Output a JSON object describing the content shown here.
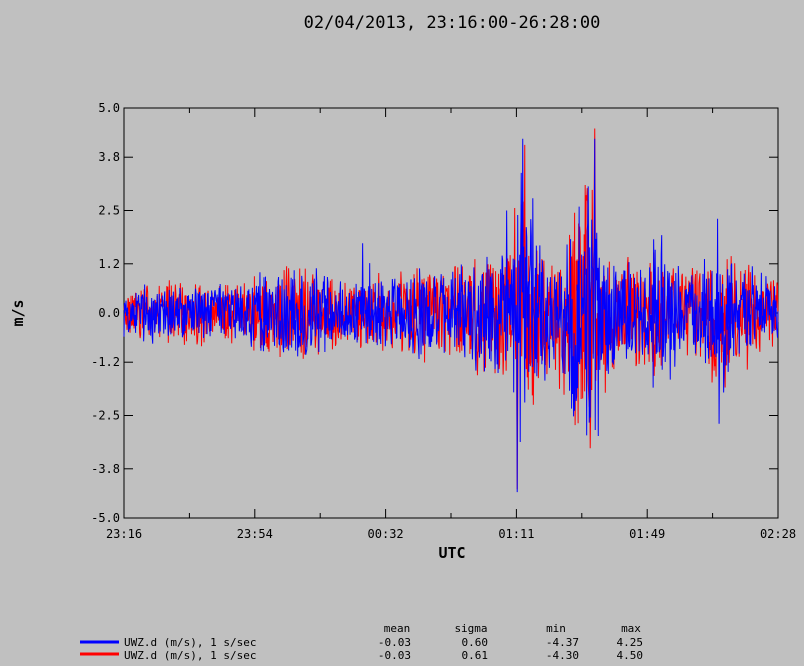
{
  "chart_data": {
    "type": "line",
    "title": "02/04/2013, 23:16:00-26:28:00",
    "xlabel": "UTC",
    "ylabel": "m/s",
    "ylim": [
      -5.0,
      5.0
    ],
    "yticks": [
      {
        "value": -5.0,
        "label": "-5.0"
      },
      {
        "value": -3.8,
        "label": "-3.8"
      },
      {
        "value": -2.5,
        "label": "-2.5"
      },
      {
        "value": -1.2,
        "label": "-1.2"
      },
      {
        "value": 0.0,
        "label": "0.0"
      },
      {
        "value": 1.2,
        "label": "1.2"
      },
      {
        "value": 2.5,
        "label": "2.5"
      },
      {
        "value": 3.8,
        "label": "3.8"
      },
      {
        "value": 5.0,
        "label": "5.0"
      }
    ],
    "xticks": [
      "23:16",
      "23:54",
      "00:32",
      "01:11",
      "01:49",
      "02:28"
    ],
    "grid": false,
    "stats_headers": [
      "mean",
      "sigma",
      "min",
      "max"
    ],
    "series": [
      {
        "name": "UWZ.d (m/s), 1 s/sec",
        "color": "#0000ff",
        "stats": [
          "-0.03",
          "0.60",
          "-4.37",
          "4.25"
        ],
        "envelope": [
          [
            0.0,
            0.6
          ],
          [
            0.03,
            0.8
          ],
          [
            0.06,
            0.9
          ],
          [
            0.1,
            0.85
          ],
          [
            0.14,
            0.75
          ],
          [
            0.18,
            0.8
          ],
          [
            0.22,
            1.2
          ],
          [
            0.27,
            1.3
          ],
          [
            0.31,
            1.0
          ],
          [
            0.35,
            0.9
          ],
          [
            0.4,
            1.0
          ],
          [
            0.45,
            1.3
          ],
          [
            0.5,
            1.1
          ],
          [
            0.55,
            1.6
          ],
          [
            0.59,
            1.9
          ],
          [
            0.605,
            4.2
          ],
          [
            0.62,
            2.5
          ],
          [
            0.66,
            1.5
          ],
          [
            0.7,
            3.3
          ],
          [
            0.715,
            4.3
          ],
          [
            0.73,
            2.2
          ],
          [
            0.76,
            1.4
          ],
          [
            0.8,
            1.5
          ],
          [
            0.815,
            1.8
          ],
          [
            0.84,
            1.3
          ],
          [
            0.88,
            1.2
          ],
          [
            0.91,
            2.3
          ],
          [
            0.94,
            1.4
          ],
          [
            1.0,
            0.8
          ]
        ],
        "bursts": [
          [
            0.365,
            1.7
          ],
          [
            0.585,
            2.5
          ],
          [
            0.601,
            -4.37
          ],
          [
            0.61,
            4.25
          ],
          [
            0.625,
            2.8
          ],
          [
            0.708,
            2.0
          ],
          [
            0.72,
            4.25
          ],
          [
            0.725,
            -3.0
          ],
          [
            0.81,
            1.8
          ],
          [
            0.822,
            1.9
          ],
          [
            0.908,
            2.3
          ],
          [
            0.91,
            -2.7
          ]
        ]
      },
      {
        "name": "UWZ.d (m/s), 1 s/sec",
        "color": "#ff0000",
        "stats": [
          "-0.03",
          "0.61",
          "-4.30",
          "4.50"
        ],
        "envelope": [
          [
            0.0,
            0.6
          ],
          [
            0.03,
            0.82
          ],
          [
            0.06,
            0.92
          ],
          [
            0.1,
            0.87
          ],
          [
            0.14,
            0.78
          ],
          [
            0.18,
            0.82
          ],
          [
            0.22,
            1.22
          ],
          [
            0.27,
            1.32
          ],
          [
            0.31,
            1.02
          ],
          [
            0.35,
            0.92
          ],
          [
            0.4,
            1.02
          ],
          [
            0.45,
            1.32
          ],
          [
            0.5,
            1.12
          ],
          [
            0.55,
            1.62
          ],
          [
            0.59,
            1.92
          ],
          [
            0.605,
            4.1
          ],
          [
            0.62,
            2.5
          ],
          [
            0.66,
            1.52
          ],
          [
            0.7,
            3.4
          ],
          [
            0.715,
            4.5
          ],
          [
            0.73,
            2.2
          ],
          [
            0.76,
            1.42
          ],
          [
            0.8,
            1.52
          ],
          [
            0.815,
            1.82
          ],
          [
            0.84,
            1.32
          ],
          [
            0.88,
            1.22
          ],
          [
            0.91,
            2.3
          ],
          [
            0.94,
            1.42
          ],
          [
            1.0,
            0.82
          ]
        ],
        "bursts": [
          [
            0.601,
            -4.3
          ],
          [
            0.613,
            4.1
          ],
          [
            0.72,
            4.5
          ],
          [
            0.713,
            -3.3
          ]
        ]
      }
    ]
  }
}
